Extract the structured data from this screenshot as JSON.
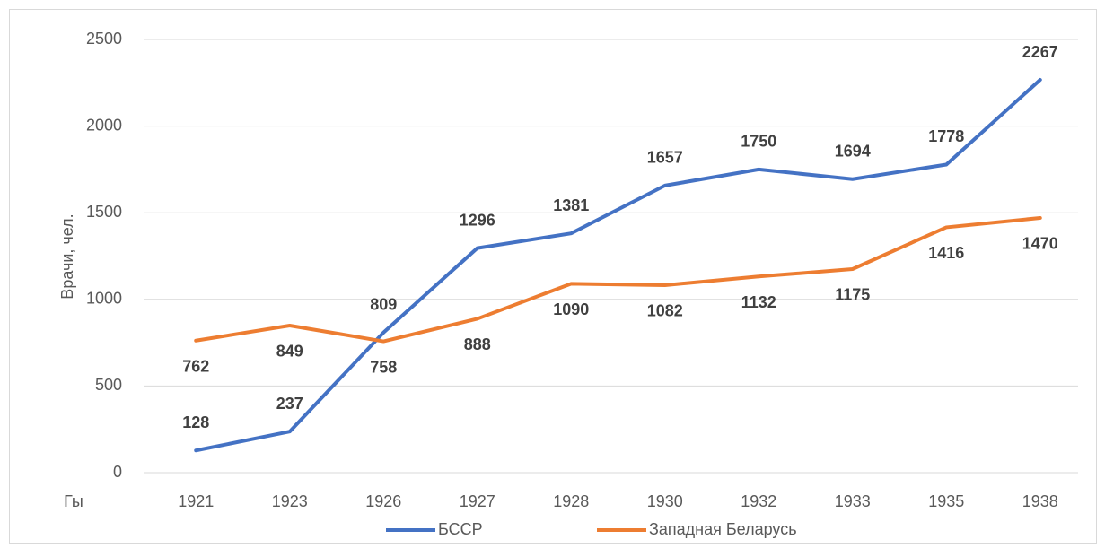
{
  "chart_data": {
    "type": "line",
    "y_label": "Врачи, чел.",
    "x_label": "Гы",
    "categories": [
      "1921",
      "1923",
      "1926",
      "1927",
      "1928",
      "1930",
      "1932",
      "1933",
      "1935",
      "1938"
    ],
    "series": [
      {
        "name": "БССР",
        "color": "#4472c4",
        "values": [
          128,
          237,
          809,
          1296,
          1381,
          1657,
          1750,
          1694,
          1778,
          2267
        ]
      },
      {
        "name": "Западная Беларусь",
        "color": "#ed7d31",
        "values": [
          762,
          849,
          758,
          888,
          1090,
          1082,
          1132,
          1175,
          1416,
          1470
        ]
      }
    ],
    "ylim": [
      0,
      2500
    ],
    "yticks": [
      0,
      500,
      1000,
      1500,
      2000,
      2500
    ],
    "grid": true,
    "legend": "bottom"
  }
}
